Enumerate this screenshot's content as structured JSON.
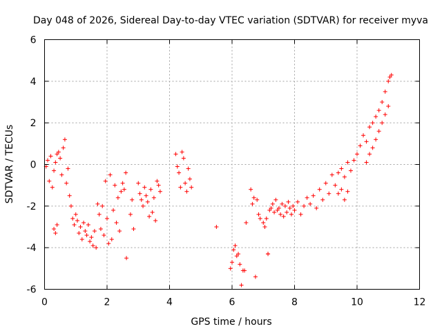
{
  "chart_data": {
    "type": "scatter",
    "title": "Day 048 of 2026, Sidereal Day-to-day VTEC variation (SDTVAR) for receiver myva",
    "xlabel": "GPS time / hours",
    "ylabel": "SDTVAR / TECUs",
    "xlim": [
      0,
      12
    ],
    "ylim": [
      -6,
      6
    ],
    "xticks": [
      0,
      2,
      4,
      6,
      8,
      10,
      12
    ],
    "yticks": [
      -6,
      -4,
      -2,
      0,
      2,
      4,
      6
    ],
    "grid": true,
    "marker": "+",
    "color": "#ff0000",
    "series": [
      {
        "name": "SDTVAR",
        "x": [
          0.05,
          0.1,
          0.15,
          0.2,
          0.25,
          0.3,
          0.35,
          0.4,
          0.45,
          0.5,
          0.55,
          0.6,
          0.65,
          0.7,
          0.75,
          0.3,
          0.35,
          0.4,
          0.8,
          0.85,
          0.9,
          0.95,
          1.0,
          1.05,
          1.1,
          1.15,
          1.2,
          1.25,
          1.3,
          1.35,
          1.4,
          1.45,
          1.5,
          1.55,
          1.6,
          1.65,
          1.7,
          1.75,
          1.8,
          1.85,
          1.9,
          1.95,
          2.0,
          2.05,
          2.1,
          2.15,
          2.2,
          2.25,
          2.3,
          2.35,
          2.4,
          2.45,
          2.5,
          2.55,
          2.6,
          2.62,
          2.75,
          2.8,
          2.85,
          3.0,
          3.05,
          3.1,
          3.15,
          3.2,
          3.25,
          3.3,
          3.35,
          3.4,
          3.45,
          3.5,
          3.55,
          3.6,
          3.65,
          3.7,
          4.2,
          4.25,
          4.3,
          4.35,
          4.4,
          4.45,
          4.5,
          4.55,
          4.6,
          4.65,
          4.7,
          5.5,
          5.95,
          6.0,
          6.05,
          6.1,
          6.15,
          6.2,
          6.25,
          6.3,
          6.35,
          6.4,
          6.45,
          6.6,
          6.65,
          6.7,
          6.75,
          6.8,
          6.85,
          6.9,
          7.0,
          7.05,
          7.1,
          7.15,
          7.2,
          7.25,
          7.3,
          7.35,
          7.4,
          7.45,
          7.5,
          7.55,
          7.6,
          7.65,
          7.7,
          7.75,
          7.8,
          7.85,
          7.9,
          7.95,
          8.0,
          8.1,
          8.2,
          8.3,
          8.4,
          8.5,
          8.6,
          8.7,
          8.8,
          8.9,
          9.0,
          9.1,
          9.2,
          9.3,
          9.4,
          9.5,
          9.6,
          9.7,
          9.8,
          9.9,
          10.0,
          10.1,
          10.2,
          10.3,
          10.4,
          10.5,
          10.6,
          10.7,
          10.8,
          10.9,
          11.0,
          11.05,
          11.1,
          10.3,
          10.4,
          10.5,
          10.6,
          10.7,
          10.8,
          10.9,
          11.0,
          9.4,
          9.5,
          9.6,
          9.7,
          7.15
        ],
        "y": [
          -0.1,
          0.2,
          -0.8,
          0.4,
          -1.1,
          -0.3,
          0.1,
          -2.9,
          0.6,
          0.3,
          -0.5,
          0.8,
          1.2,
          -0.9,
          -0.2,
          -3.1,
          -3.3,
          0.5,
          -1.5,
          -2.0,
          -2.6,
          -2.9,
          -2.4,
          -2.7,
          -3.3,
          -3.0,
          -3.6,
          -2.8,
          -3.2,
          -3.4,
          -2.9,
          -3.7,
          -3.5,
          -3.9,
          -3.2,
          -4.0,
          -1.9,
          -2.4,
          -3.1,
          -2.0,
          -3.4,
          -0.8,
          -2.6,
          -3.8,
          -0.5,
          -3.6,
          -2.2,
          -1.0,
          -2.8,
          -1.6,
          -3.2,
          -1.3,
          -0.9,
          -1.2,
          -0.4,
          -4.5,
          -2.4,
          -1.7,
          -3.1,
          -0.9,
          -1.4,
          -1.7,
          -2.0,
          -1.1,
          -1.5,
          -1.8,
          -2.5,
          -1.2,
          -2.3,
          -1.6,
          -2.7,
          -0.8,
          -1.0,
          -1.3,
          0.5,
          -0.1,
          -0.4,
          -1.1,
          0.6,
          0.3,
          -0.9,
          -1.3,
          -0.2,
          -0.7,
          -1.1,
          -3.0,
          -5.0,
          -4.7,
          -4.1,
          -3.9,
          -4.4,
          -4.3,
          -4.8,
          -5.8,
          -5.1,
          -5.1,
          -2.8,
          -1.2,
          -1.9,
          -1.6,
          -5.4,
          -1.7,
          -2.4,
          -2.6,
          -2.8,
          -3.0,
          -2.6,
          -4.3,
          -2.2,
          -2.1,
          -1.9,
          -2.3,
          -1.7,
          -2.2,
          -2.1,
          -2.4,
          -1.9,
          -2.5,
          -2.0,
          -2.3,
          -1.8,
          -2.1,
          -2.4,
          -2.0,
          -2.2,
          -1.8,
          -2.4,
          -2.0,
          -1.6,
          -1.9,
          -1.5,
          -2.1,
          -1.2,
          -1.7,
          -0.9,
          -1.4,
          -0.5,
          -1.0,
          -0.4,
          -0.2,
          -0.6,
          0.1,
          -0.3,
          0.2,
          0.5,
          0.9,
          1.4,
          1.1,
          1.8,
          2.0,
          2.3,
          2.6,
          3.0,
          3.5,
          4.0,
          4.2,
          4.3,
          0.1,
          0.5,
          0.8,
          1.2,
          1.6,
          2.0,
          2.4,
          2.8,
          -1.4,
          -1.2,
          -1.7,
          -1.3,
          -4.3
        ]
      }
    ]
  }
}
